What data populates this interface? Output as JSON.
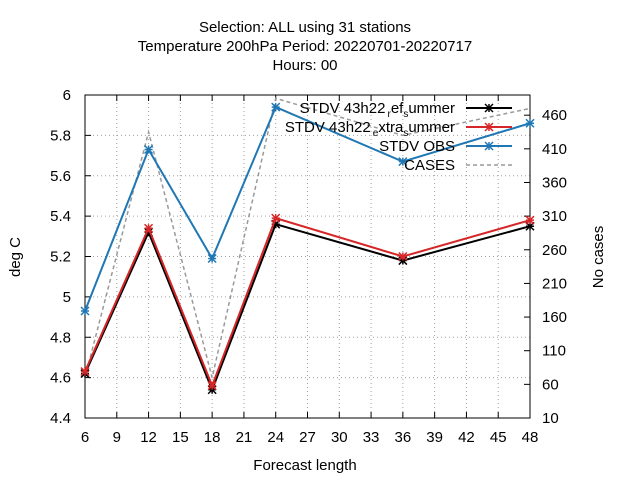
{
  "title_lines": [
    "Selection: ALL using    31 stations",
    "Temperature 200hPa   Period: 20220701-20220717",
    "Hours:  00"
  ],
  "chart_data": {
    "type": "line",
    "title": "Selection: ALL using    31 stations / Temperature 200hPa   Period: 20220701-20220717 / Hours:  00",
    "xlabel": "Forecast length",
    "ylabel": "deg C",
    "y2label": "No cases",
    "x": [
      6,
      12,
      18,
      24,
      36,
      48
    ],
    "xlim": [
      6,
      48
    ],
    "xticks": [
      "6",
      "9",
      "12",
      "15",
      "18",
      "21",
      "24",
      "27",
      "30",
      "33",
      "36",
      "39",
      "42",
      "45",
      "48"
    ],
    "ylim": [
      4.4,
      6.0
    ],
    "yticks": [
      "4.4",
      "4.6",
      "4.8",
      "5",
      "5.2",
      "5.4",
      "5.6",
      "5.8",
      "6"
    ],
    "y2lim": [
      10,
      490
    ],
    "y2ticks": [
      "10",
      "60",
      "110",
      "160",
      "210",
      "260",
      "310",
      "360",
      "410",
      "460"
    ],
    "grid": true,
    "legend_position": "top-right",
    "series": [
      {
        "name": "STDV 43h22_ref_summer",
        "legend_main": "STDV 43h22",
        "legend_sub1": "r",
        "legend_mid": "ef",
        "legend_sub2": "s",
        "legend_end": "ummer",
        "color": "#000000",
        "marker": "x-star",
        "axis": "left",
        "values": [
          4.62,
          5.32,
          4.54,
          5.36,
          5.18,
          5.35
        ]
      },
      {
        "name": "STDV 43h22_extra_summer",
        "legend_main": "STDV 43h22",
        "legend_sub1": "e",
        "legend_mid": "xtra",
        "legend_sub2": "s",
        "legend_end": "ummer",
        "color": "#d62728",
        "marker": "x-star",
        "axis": "left",
        "values": [
          4.63,
          5.34,
          4.56,
          5.39,
          5.2,
          5.38
        ]
      },
      {
        "name": "STDV OBS",
        "color": "#1f77b4",
        "marker": "x-star",
        "axis": "left",
        "values": [
          4.93,
          5.73,
          5.19,
          5.94,
          5.67,
          5.86
        ]
      },
      {
        "name": "CASES",
        "color": "#999999",
        "marker": "none",
        "dash": true,
        "axis": "right",
        "values": [
          70,
          435,
          70,
          485,
          430,
          470
        ]
      }
    ]
  }
}
